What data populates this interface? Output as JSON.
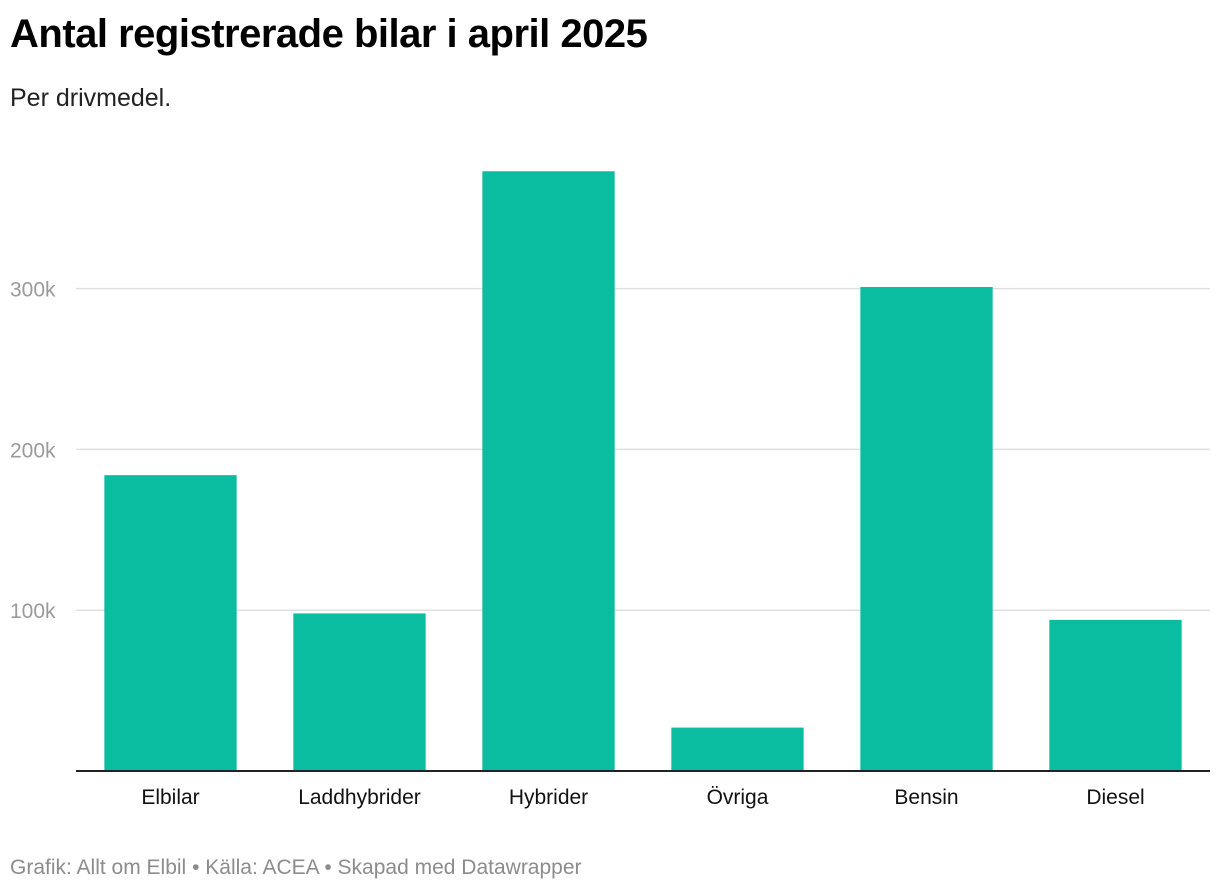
{
  "title": "Antal registrerade bilar i april 2025",
  "subtitle": "Per drivmedel.",
  "footer": {
    "grafik": "Grafik: Allt om Elbil",
    "kalla": "Källa: ACEA",
    "skapad": "Skapad med Datawrapper",
    "separator": "•"
  },
  "chart_data": {
    "type": "bar",
    "categories": [
      "Elbilar",
      "Laddhybrider",
      "Hybrider",
      "Övriga",
      "Bensin",
      "Diesel"
    ],
    "values": [
      184000,
      98000,
      373000,
      27000,
      301000,
      94000
    ],
    "ylim": [
      0,
      380000
    ],
    "yticks": [
      100000,
      200000,
      300000
    ],
    "ytick_labels": [
      "100k",
      "200k",
      "300k"
    ],
    "grid": true,
    "bar_color": "#0abda0",
    "xlabel": "",
    "ylabel": ""
  }
}
